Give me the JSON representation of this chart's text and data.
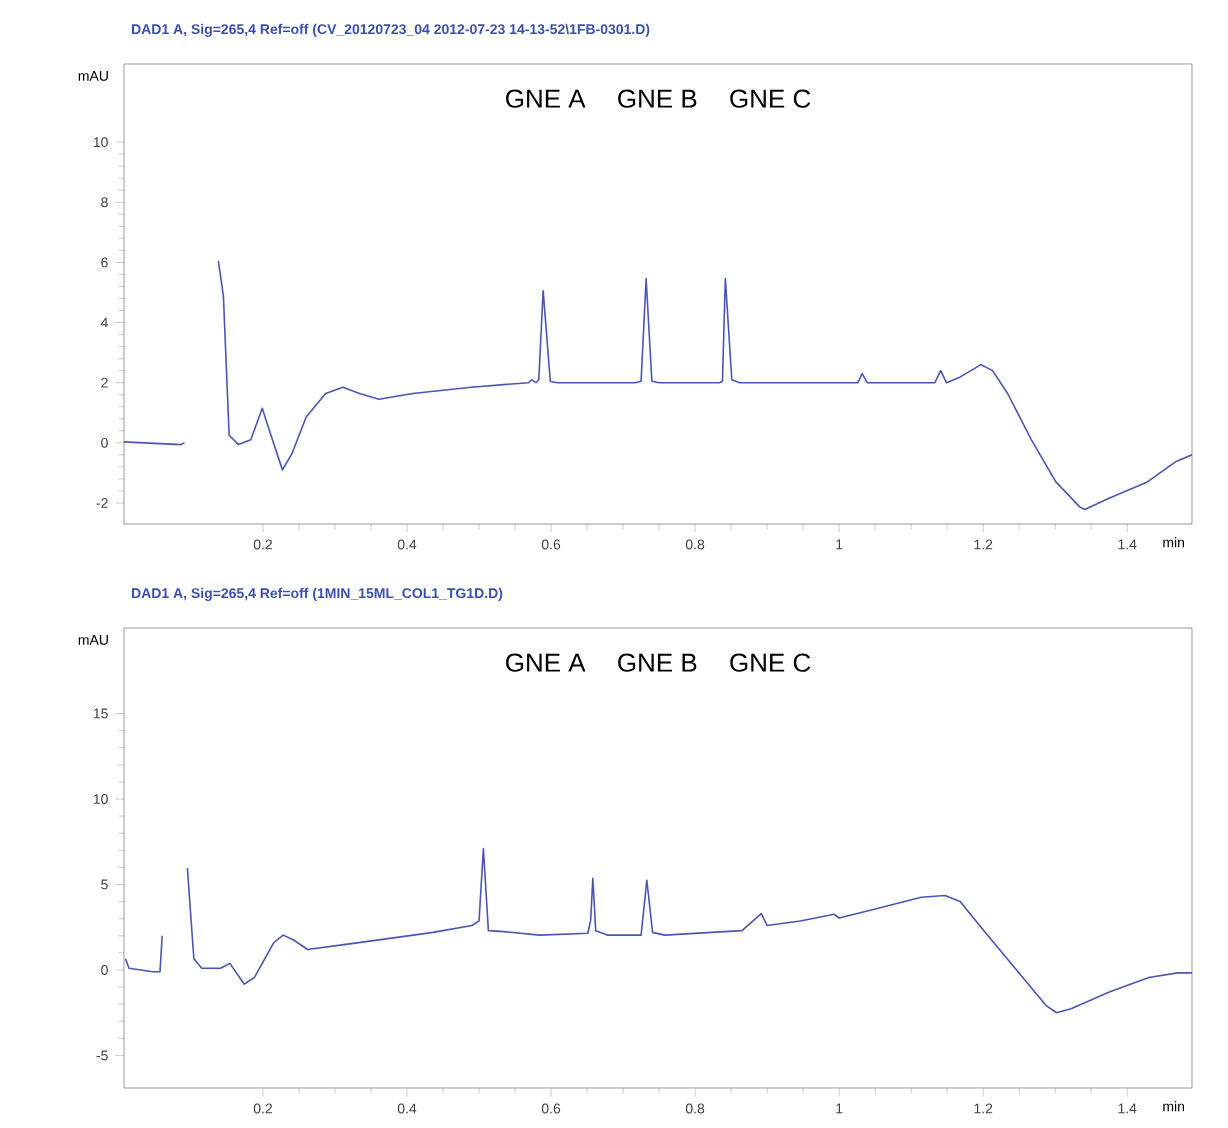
{
  "chart_data": [
    {
      "type": "line",
      "title": "DAD1 A, Sig=265,4 Ref=off (CV_20120723_04 2012-07-23 14-13-52\\1FB-0301.D)",
      "xlabel": "min",
      "ylabel": "mAU",
      "annotations": [
        "GNE A",
        "GNE B",
        "GNE C"
      ],
      "xlim": [
        0.007,
        1.49
      ],
      "ylim": [
        -2.7,
        12.6
      ],
      "xticks": [
        0.2,
        0.4,
        0.6,
        0.8,
        1,
        1.2,
        1.4
      ],
      "yticks": [
        -2,
        0,
        2,
        4,
        6,
        8,
        10
      ],
      "grid": false,
      "marker": "none",
      "line_style": "solid",
      "series": [
        {
          "color": "#4a55b5",
          "x": [
            0.007,
            0.086,
            0.091,
            0.094,
            0.098,
            0.124,
            0.138,
            0.145,
            0.153,
            0.166,
            0.183,
            0.199,
            0.209,
            0.227,
            0.24,
            0.26,
            0.287,
            0.311,
            0.334,
            0.361,
            0.408,
            0.489,
            0.569,
            0.573,
            0.579,
            0.583,
            0.589,
            0.599,
            0.609,
            0.717,
            0.725,
            0.732,
            0.74,
            0.75,
            0.834,
            0.838,
            0.842,
            0.851,
            0.862,
            1.026,
            1.032,
            1.039,
            1.133,
            1.141,
            1.149,
            1.166,
            1.197,
            1.213,
            1.234,
            1.267,
            1.301,
            1.334,
            1.341,
            1.374,
            1.428,
            1.468,
            1.49
          ],
          "values": [
            0.03,
            -0.06,
            0,
            null,
            null,
            null,
            6.05,
            4.9,
            0.25,
            -0.06,
            0.1,
            1.15,
            0.4,
            -0.9,
            -0.37,
            0.86,
            1.64,
            1.85,
            1.64,
            1.45,
            1.64,
            1.85,
            2.0,
            2.1,
            2.0,
            2.1,
            5.06,
            2.04,
            2.0,
            2.0,
            2.05,
            5.46,
            2.05,
            2.0,
            2.0,
            2.05,
            5.46,
            2.1,
            2.0,
            2.0,
            2.3,
            2.0,
            2.0,
            2.4,
            2.0,
            2.16,
            2.6,
            2.4,
            1.64,
            0.1,
            -1.3,
            -2.13,
            -2.22,
            -1.85,
            -1.3,
            -0.62,
            -0.4
          ]
        }
      ]
    },
    {
      "type": "line",
      "title": "DAD1 A, Sig=265,4 Ref=off (1MIN_15ML_COL1_TG1D.D)",
      "xlabel": "min",
      "ylabel": "mAU",
      "annotations": [
        "GNE A",
        "GNE B",
        "GNE C"
      ],
      "xlim": [
        0.007,
        1.49
      ],
      "ylim": [
        -6.9,
        20
      ],
      "xticks": [
        0.2,
        0.4,
        0.6,
        0.8,
        1,
        1.2,
        1.4
      ],
      "yticks": [
        -5,
        0,
        5,
        10,
        15
      ],
      "grid": false,
      "marker": "none",
      "line_style": "solid",
      "series": [
        {
          "color": "#4a55b5",
          "x": [
            0.009,
            0.014,
            0.047,
            0.057,
            0.06,
            0.062,
            0.073,
            0.077,
            0.095,
            0.104,
            0.115,
            0.141,
            0.154,
            0.174,
            0.188,
            0.215,
            0.228,
            0.242,
            0.262,
            0.315,
            0.409,
            0.436,
            0.49,
            0.5,
            0.506,
            0.513,
            0.53,
            0.584,
            0.651,
            0.655,
            0.658,
            0.662,
            0.678,
            0.725,
            0.733,
            0.741,
            0.758,
            0.865,
            0.892,
            0.9,
            0.946,
            0.993,
            1.0,
            1.053,
            1.114,
            1.147,
            1.168,
            1.201,
            1.255,
            1.288,
            1.302,
            1.322,
            1.376,
            1.43,
            1.47,
            1.49
          ],
          "values": [
            0.66,
            0.1,
            -0.1,
            -0.1,
            2.0,
            null,
            null,
            null,
            5.97,
            0.66,
            0.1,
            0.1,
            0.39,
            -0.83,
            -0.44,
            1.6,
            2.04,
            1.77,
            1.2,
            1.5,
            2.04,
            2.2,
            2.6,
            2.87,
            7.1,
            2.3,
            2.26,
            2.04,
            2.15,
            2.9,
            5.36,
            2.3,
            2.04,
            2.04,
            5.25,
            2.2,
            2.04,
            2.3,
            3.3,
            2.6,
            2.87,
            3.26,
            3.04,
            3.6,
            4.25,
            4.36,
            4.0,
            2.3,
            -0.44,
            -2.1,
            -2.5,
            -2.27,
            -1.27,
            -0.44,
            -0.17,
            -0.17
          ]
        }
      ]
    }
  ]
}
